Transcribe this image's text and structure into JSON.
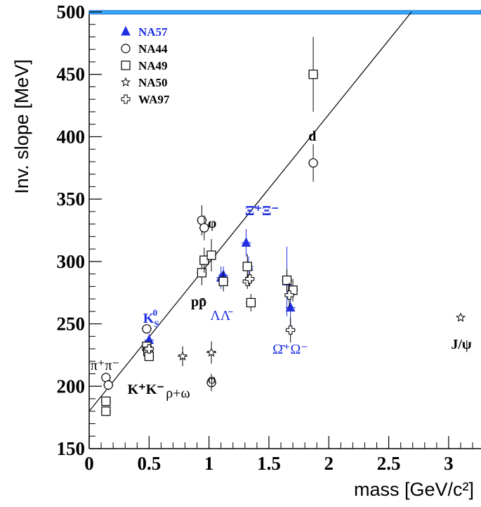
{
  "chart_data": {
    "type": "scatter",
    "xlabel": "mass  [GeV/c²]",
    "ylabel": "Inv. slope  [MeV]",
    "xlim": [
      0,
      3.27
    ],
    "ylim": [
      150,
      500
    ],
    "x_ticks": [
      0,
      0.5,
      1,
      1.5,
      2,
      2.5,
      3
    ],
    "x_tick_labels": [
      "0",
      "0.5",
      "1",
      "1.5",
      "2",
      "2.5",
      "3"
    ],
    "y_ticks": [
      150,
      200,
      250,
      300,
      350,
      400,
      450,
      500
    ],
    "y_tick_labels": [
      "150",
      "200",
      "250",
      "300",
      "350",
      "400",
      "450",
      "500"
    ],
    "grid": false,
    "legend_position": "top-left",
    "colors": {
      "na57": "#1f2fe0",
      "other": "#000000",
      "frame_top": "#33aaff"
    },
    "series": [
      {
        "name": "NA57",
        "marker": "filled-triangle",
        "color": "#1f2fe0",
        "points": [
          {
            "x": 0.5,
            "y": 237,
            "err": 5
          },
          {
            "x": 1.1,
            "y": 287,
            "err": 9
          },
          {
            "x": 1.12,
            "y": 289,
            "err": 7
          },
          {
            "x": 1.31,
            "y": 315,
            "err": 11
          },
          {
            "x": 1.33,
            "y": 296,
            "err": 8
          },
          {
            "x": 1.65,
            "y": 284,
            "err": 28
          },
          {
            "x": 1.68,
            "y": 263,
            "err": 19
          }
        ]
      },
      {
        "name": "NA44",
        "marker": "open-circle",
        "color": "#000000",
        "points": [
          {
            "x": 0.14,
            "y": 207,
            "err": 3
          },
          {
            "x": 0.16,
            "y": 201,
            "err": 4
          },
          {
            "x": 0.48,
            "y": 246,
            "err": 2
          },
          {
            "x": 0.94,
            "y": 333,
            "err": 12
          },
          {
            "x": 0.96,
            "y": 327,
            "err": 10
          },
          {
            "x": 1.02,
            "y": 203,
            "err": 7
          },
          {
            "x": 1.87,
            "y": 379,
            "err": 15
          }
        ]
      },
      {
        "name": "NA49",
        "marker": "open-square",
        "color": "#000000",
        "points": [
          {
            "x": 0.14,
            "y": 180,
            "err": 3
          },
          {
            "x": 0.14,
            "y": 188,
            "err": 3
          },
          {
            "x": 0.48,
            "y": 232,
            "err": 3
          },
          {
            "x": 0.49,
            "y": 228,
            "err": 3
          },
          {
            "x": 0.5,
            "y": 224,
            "err": 3
          },
          {
            "x": 0.94,
            "y": 291,
            "err": 10
          },
          {
            "x": 0.96,
            "y": 301,
            "err": 10
          },
          {
            "x": 1.02,
            "y": 305,
            "err": 13
          },
          {
            "x": 1.12,
            "y": 284,
            "err": 8
          },
          {
            "x": 1.32,
            "y": 296,
            "err": 10
          },
          {
            "x": 1.35,
            "y": 267,
            "err": 7
          },
          {
            "x": 1.65,
            "y": 285,
            "err": 9
          },
          {
            "x": 1.7,
            "y": 277,
            "err": 9
          },
          {
            "x": 1.87,
            "y": 450,
            "err": 30
          }
        ]
      },
      {
        "name": "NA50",
        "marker": "open-star",
        "color": "#000000",
        "points": [
          {
            "x": 0.78,
            "y": 224,
            "err": 8
          },
          {
            "x": 1.02,
            "y": 227,
            "err": 9
          },
          {
            "x": 3.1,
            "y": 255,
            "err": 0
          }
        ]
      },
      {
        "name": "WA97",
        "marker": "open-cross",
        "color": "#000000",
        "points": [
          {
            "x": 0.5,
            "y": 230,
            "err": 4
          },
          {
            "x": 1.32,
            "y": 284,
            "err": 6
          },
          {
            "x": 1.34,
            "y": 286,
            "err": 6
          },
          {
            "x": 1.67,
            "y": 273,
            "err": 10
          },
          {
            "x": 1.68,
            "y": 245,
            "err": 10
          }
        ]
      }
    ],
    "fit_line": {
      "x": [
        0,
        2.69
      ],
      "y": [
        180,
        500
      ]
    },
    "annotations": [
      {
        "text": "K",
        "sub": "S",
        "sup": "0",
        "x": 0.45,
        "y": 251,
        "color": "#1f2fe0",
        "bold": true
      },
      {
        "text": "Ξ̄⁺Ξ⁻",
        "x": 1.3,
        "y": 337,
        "color": "#1f2fe0",
        "bold": true
      },
      {
        "text": "d",
        "x": 1.83,
        "y": 397,
        "color": "#000000",
        "bold": true
      },
      {
        "text": "pp̄",
        "x": 0.85,
        "y": 264,
        "color": "#000000",
        "bold": true
      },
      {
        "text": "ΛΛ̄",
        "x": 1.01,
        "y": 253,
        "color": "#1f2fe0",
        "bold": false
      },
      {
        "text": "Ω̄⁺Ω⁻",
        "x": 1.53,
        "y": 226,
        "color": "#1f2fe0",
        "bold": false
      },
      {
        "text": "J/ψ",
        "x": 3.02,
        "y": 230,
        "color": "#000000",
        "bold": true
      },
      {
        "text": "π⁺π⁻",
        "x": 0.01,
        "y": 213,
        "color": "#000000",
        "bold": false
      },
      {
        "text": "K⁺K⁻",
        "x": 0.32,
        "y": 194,
        "color": "#000000",
        "bold": true
      },
      {
        "text": "ρ+ω",
        "x": 0.64,
        "y": 191,
        "color": "#000000",
        "bold": false
      },
      {
        "text": "φ",
        "x": 0.99,
        "y": 202,
        "color": "#000000",
        "bold": false
      },
      {
        "text": "φ",
        "x": 0.99,
        "y": 327,
        "color": "#000000",
        "bold": true
      }
    ]
  }
}
